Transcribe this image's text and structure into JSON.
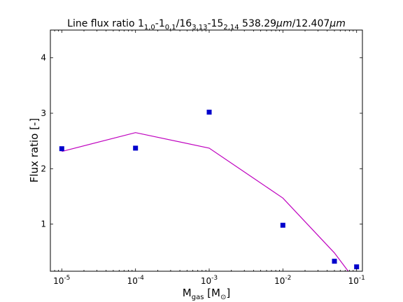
{
  "chart_data": {
    "type": "line",
    "title": {
      "prefix": "Line flux ratio 1",
      "sub1": "1,0",
      "mid1": "-1",
      "sub2": "0,1",
      "mid2": "/16",
      "sub3": "3,13",
      "mid3": "-15",
      "sub4": "2,14",
      "num1": " 538.29",
      "unit1": "μm",
      "num2": "/12.407",
      "unit2": "μm"
    },
    "xlabel": {
      "main": "M",
      "sub": "gas",
      "bracket_open": " [M",
      "sun": "⊙",
      "bracket_close": "]"
    },
    "ylabel": "Flux ratio [-]",
    "x_scale": "log",
    "xlim": [
      7e-06,
      0.12
    ],
    "ylim": [
      0.15,
      4.5
    ],
    "x_ticks": [
      {
        "value": 1e-05,
        "base": "10",
        "exp": "-5"
      },
      {
        "value": 0.0001,
        "base": "10",
        "exp": "-4"
      },
      {
        "value": 0.001,
        "base": "10",
        "exp": "-3"
      },
      {
        "value": 0.01,
        "base": "10",
        "exp": "-2"
      },
      {
        "value": 0.1,
        "base": "10",
        "exp": "-1"
      }
    ],
    "y_ticks": [
      {
        "value": 1,
        "label": "1"
      },
      {
        "value": 2,
        "label": "2"
      },
      {
        "value": 3,
        "label": "3"
      },
      {
        "value": 4,
        "label": "4"
      }
    ],
    "series": [
      {
        "kind": "line",
        "color": "#bf00bf",
        "x": [
          1e-05,
          0.0001,
          0.001,
          0.01,
          0.05,
          0.1
        ],
        "y": [
          2.31,
          2.65,
          2.37,
          1.47,
          0.48,
          -0.05
        ]
      },
      {
        "kind": "scatter",
        "marker": "square",
        "color": "#0000cc",
        "x": [
          1e-05,
          0.0001,
          0.001,
          0.01,
          0.05,
          0.1
        ],
        "y": [
          2.36,
          2.37,
          3.02,
          0.98,
          0.33,
          0.23
        ]
      }
    ]
  }
}
